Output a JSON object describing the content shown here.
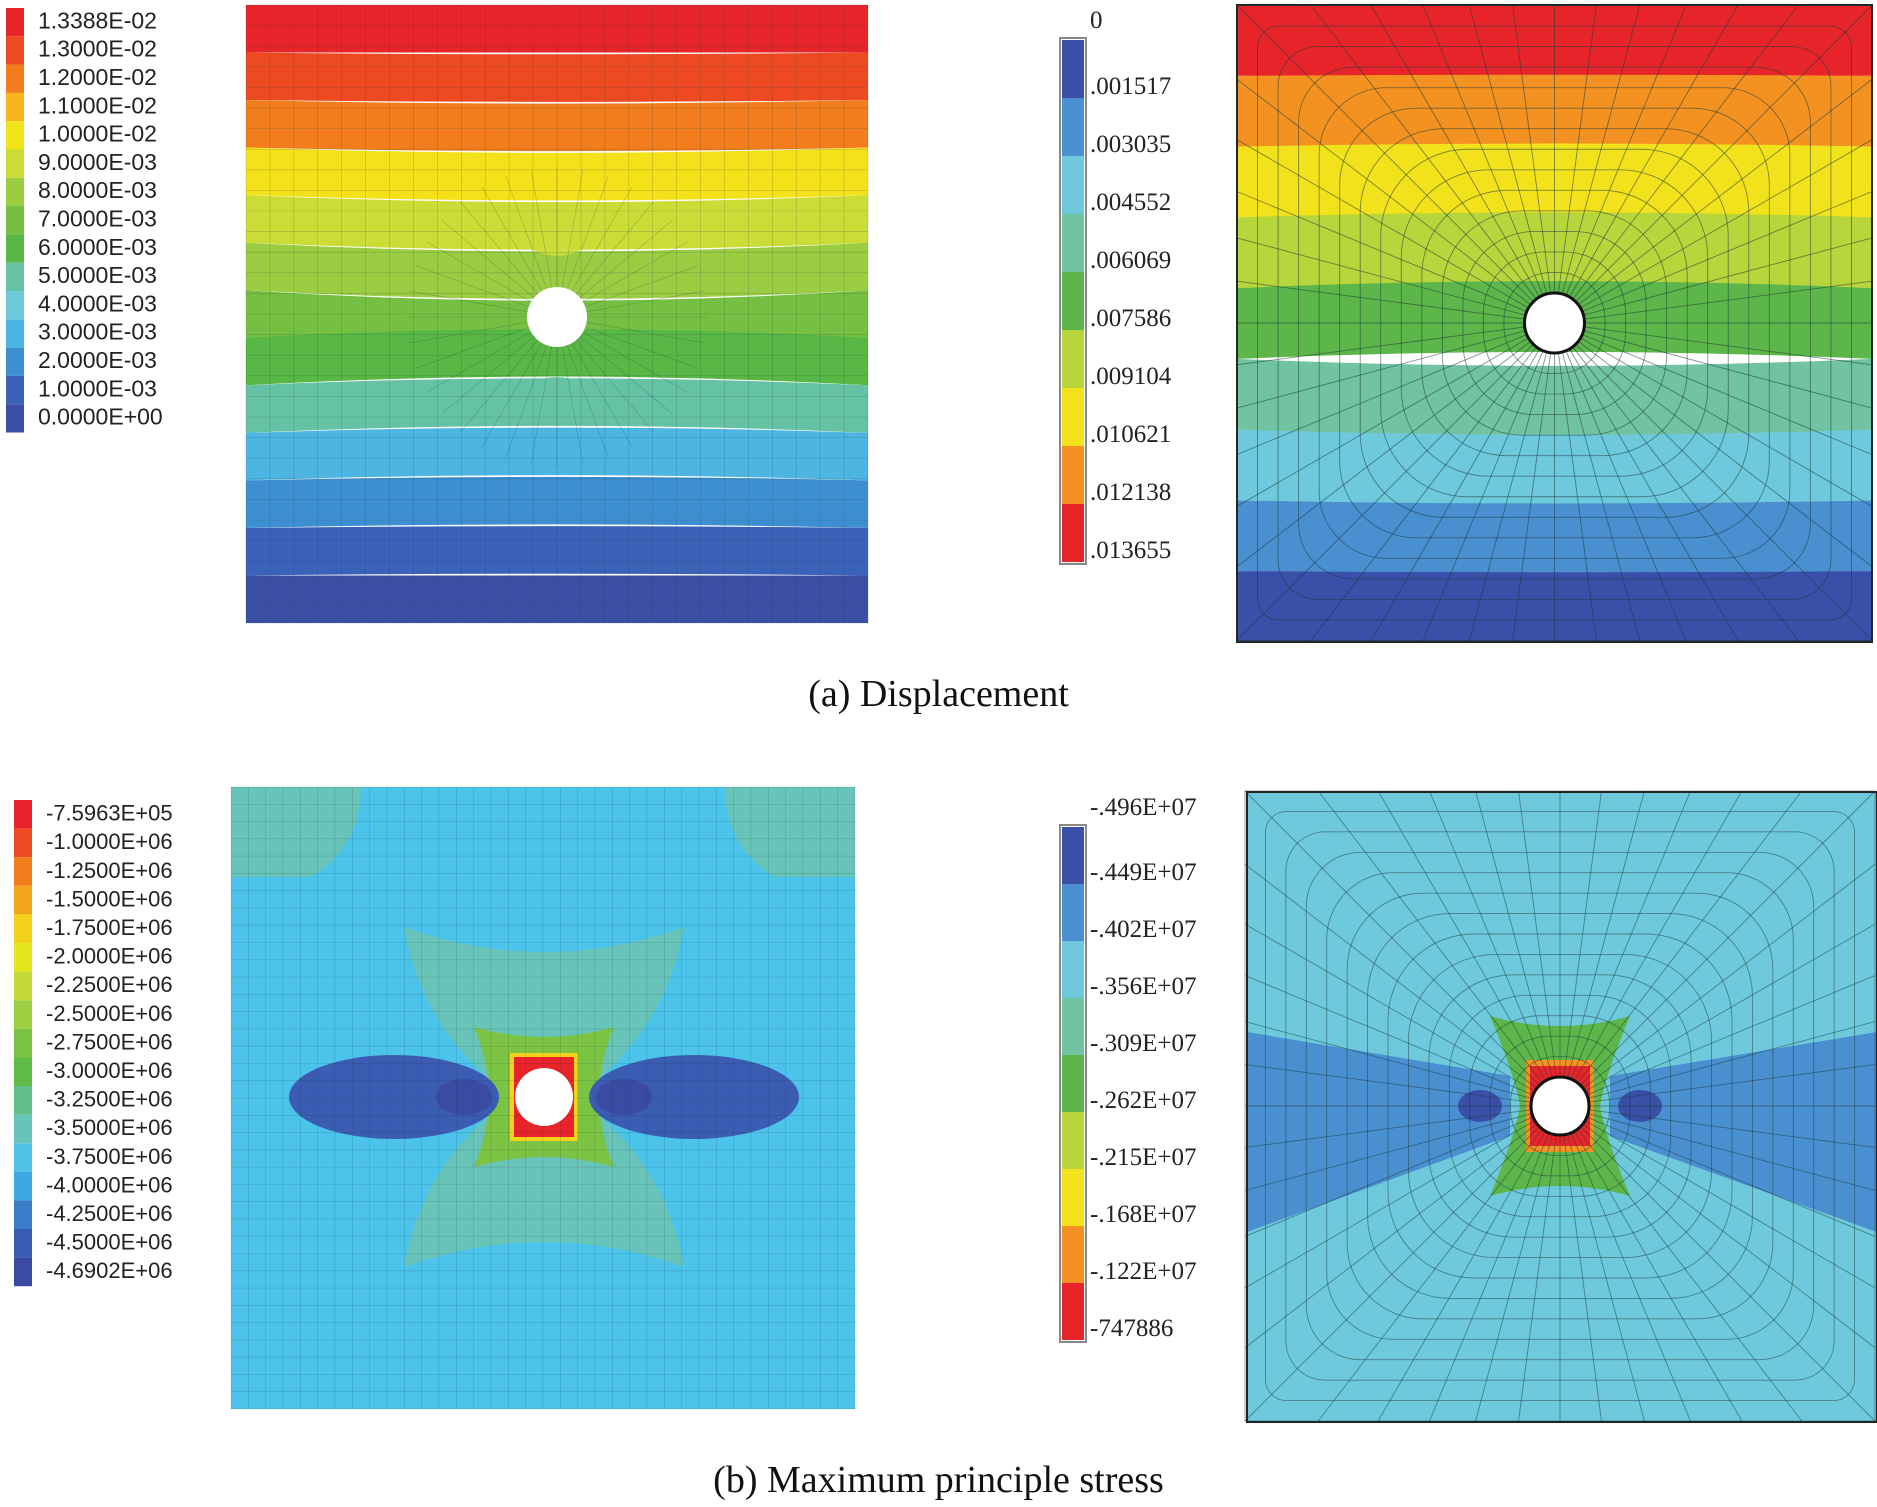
{
  "captions": {
    "displacement": "(a) Displacement",
    "stress": "(b) Maximum principle stress"
  },
  "legends": {
    "disp_left": {
      "labels": [
        "1.3388E-02",
        "1.3000E-02",
        "1.2000E-02",
        "1.1000E-02",
        "1.0000E-02",
        "9.0000E-03",
        "8.0000E-03",
        "7.0000E-03",
        "6.0000E-03",
        "5.0000E-03",
        "4.0000E-03",
        "3.0000E-03",
        "2.0000E-03",
        "1.0000E-03",
        "0.0000E+00"
      ],
      "colors": [
        "#e8242b",
        "#ee4a22",
        "#f27d1c",
        "#f5b419",
        "#f2e41a",
        "#cbdc36",
        "#9bcd43",
        "#75c043",
        "#58b745",
        "#66c2a5",
        "#6fc8d8",
        "#4cb5e2",
        "#3d8fd1",
        "#3a62b8",
        "#3b4fa5"
      ]
    },
    "disp_right": {
      "top_label": "0",
      "labels": [
        ".001517",
        ".003035",
        ".004552",
        ".006069",
        ".007586",
        ".009104",
        ".010621",
        ".012138",
        ".013655"
      ],
      "colors": [
        "#3a4fa8",
        "#4a8fd0",
        "#6ec9dc",
        "#72c3a2",
        "#5db649",
        "#b8d53b",
        "#f2e21c",
        "#f39221",
        "#e8242b"
      ]
    },
    "stress_left": {
      "labels": [
        "-7.5963E+05",
        "-1.0000E+06",
        "-1.2500E+06",
        "-1.5000E+06",
        "-1.7500E+06",
        "-2.0000E+06",
        "-2.2500E+06",
        "-2.5000E+06",
        "-2.7500E+06",
        "-3.0000E+06",
        "-3.2500E+06",
        "-3.5000E+06",
        "-3.7500E+06",
        "-4.0000E+06",
        "-4.2500E+06",
        "-4.5000E+06",
        "-4.6902E+06"
      ],
      "colors": [
        "#e8242b",
        "#ee4a22",
        "#f27d1c",
        "#f5a51b",
        "#f5d21a",
        "#e6e520",
        "#c4da3a",
        "#9dcf42",
        "#7cc343",
        "#5fba46",
        "#62bf8a",
        "#68c4b9",
        "#4fc3e6",
        "#3ea9e0",
        "#3a7cc8",
        "#3a5cb2",
        "#3b4aa3"
      ]
    },
    "stress_right": {
      "top_label": "-.496E+07",
      "labels": [
        "-.449E+07",
        "-.402E+07",
        "-.356E+07",
        "-.309E+07",
        "-.262E+07",
        "-.215E+07",
        "-.168E+07",
        "-.122E+07",
        "-747886"
      ],
      "colors": [
        "#3a4fa8",
        "#4a8fd0",
        "#6ec9dc",
        "#72c3a2",
        "#5db649",
        "#b8d53b",
        "#f2e21c",
        "#f39221",
        "#e8242b"
      ]
    }
  },
  "contour_colors": {
    "disp_left_bands": [
      "#e8242b",
      "#ee4a22",
      "#f27d1c",
      "#f5e11a",
      "#cbdc36",
      "#9bcd43",
      "#75c043",
      "#58b745",
      "#66c2a5",
      "#4cb5e2",
      "#3d8fd1",
      "#3a62b8",
      "#3b4fa5"
    ],
    "disp_right_bands": [
      "#e8242b",
      "#f39221",
      "#f2e21c",
      "#b8d53b",
      "#5db649",
      "#72c3a2",
      "#6ec9dc",
      "#4a8fd0",
      "#3a4fa8"
    ],
    "stress_left_bg": "#4cc3ea",
    "stress_right_bg": "#6ec9dc",
    "mesh_line": "#1a3a3a"
  }
}
